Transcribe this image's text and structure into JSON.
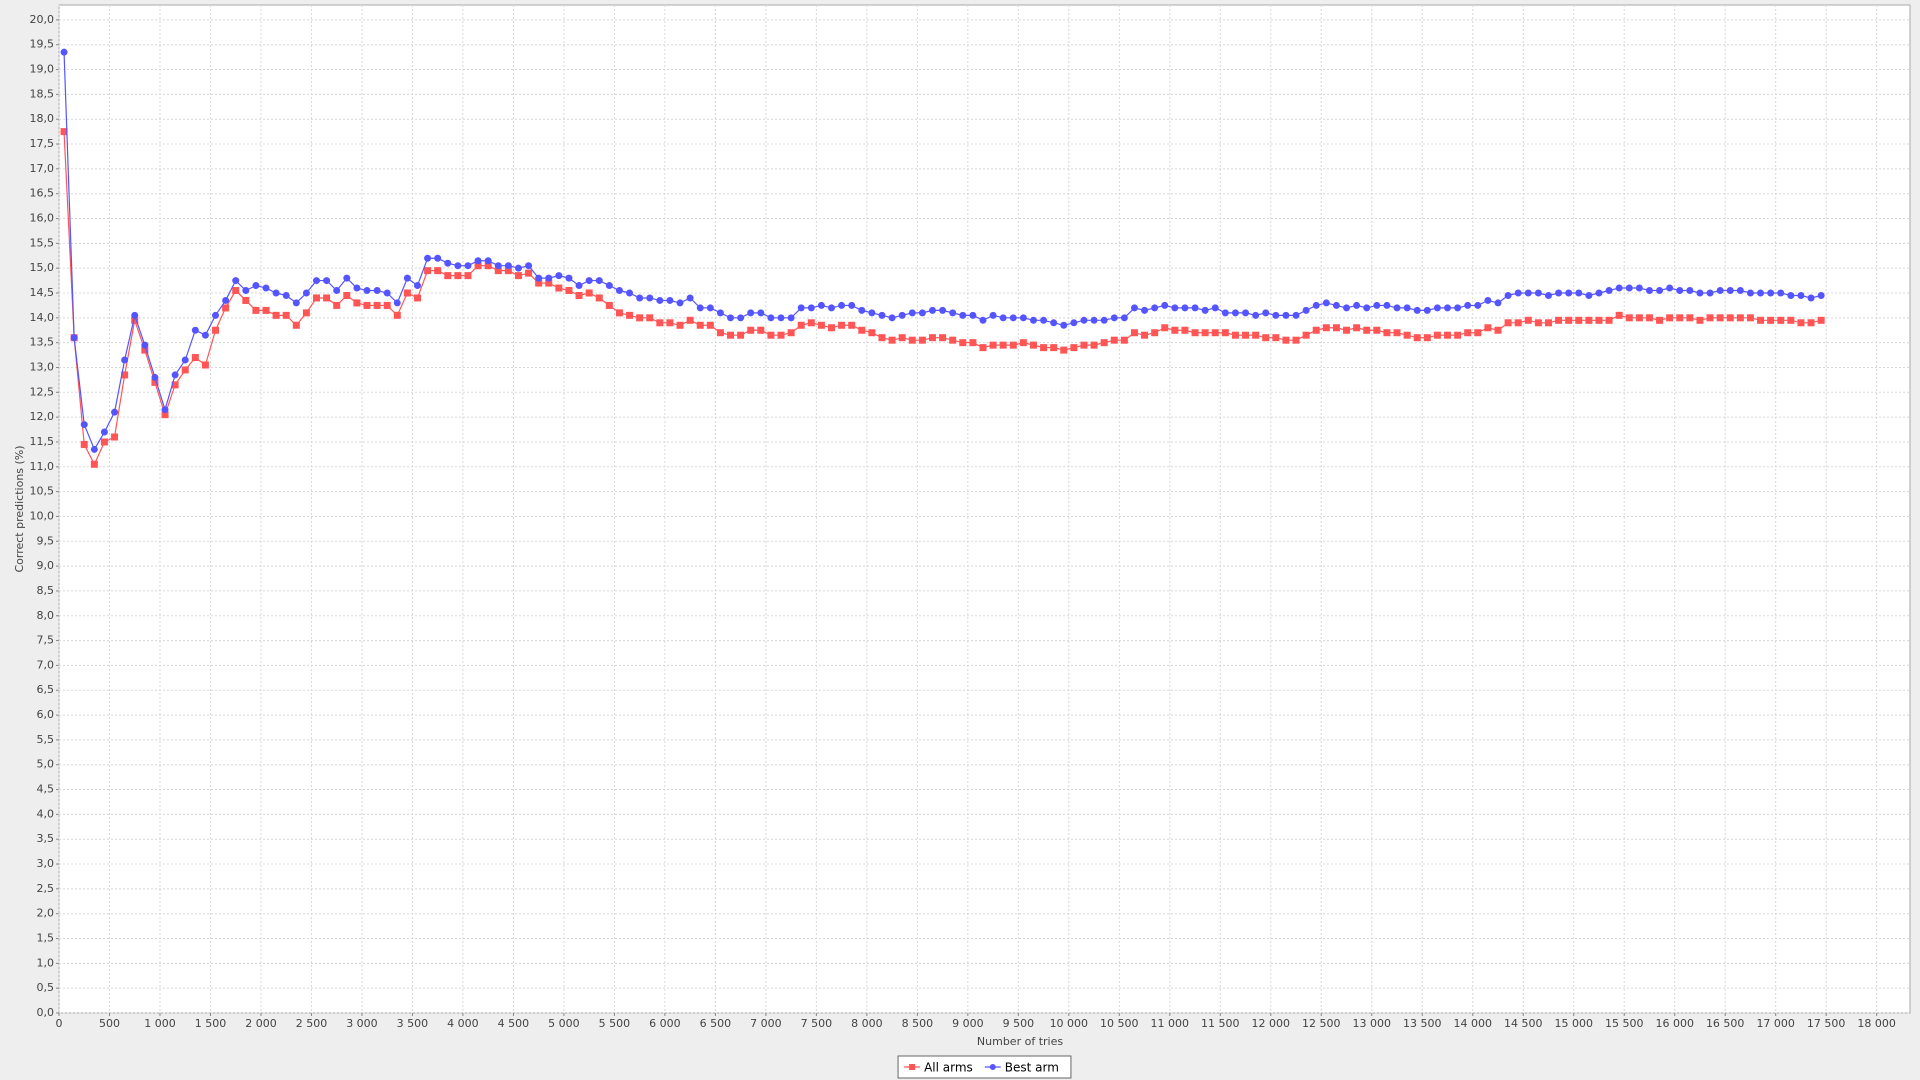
{
  "chart_data": {
    "type": "line",
    "xlabel": "Number of tries",
    "ylabel": "Correct predictions (%)",
    "xlim": [
      0,
      18330
    ],
    "ylim": [
      0,
      20.3
    ],
    "grid": true,
    "legend": "bottom",
    "xticks": [
      0,
      500,
      {
        "value": 1000,
        "label": "1 000"
      },
      {
        "value": 1500,
        "label": "1 500"
      },
      {
        "value": 2000,
        "label": "2 000"
      },
      {
        "value": 2500,
        "label": "2 500"
      },
      {
        "value": 3000,
        "label": "3 000"
      },
      {
        "value": 3500,
        "label": "3 500"
      },
      {
        "value": 4000,
        "label": "4 000"
      },
      {
        "value": 4500,
        "label": "4 500"
      },
      {
        "value": 5000,
        "label": "5 000"
      },
      {
        "value": 5500,
        "label": "5 500"
      },
      {
        "value": 6000,
        "label": "6 000"
      },
      {
        "value": 6500,
        "label": "6 500"
      },
      {
        "value": 7000,
        "label": "7 000"
      },
      {
        "value": 7500,
        "label": "7 500"
      },
      {
        "value": 8000,
        "label": "8 000"
      },
      {
        "value": 8500,
        "label": "8 500"
      },
      {
        "value": 9000,
        "label": "9 000"
      },
      {
        "value": 9500,
        "label": "9 500"
      },
      {
        "value": 10000,
        "label": "10 000"
      },
      {
        "value": 10500,
        "label": "10 500"
      },
      {
        "value": 11000,
        "label": "11 000"
      },
      {
        "value": 11500,
        "label": "11 500"
      },
      {
        "value": 12000,
        "label": "12 000"
      },
      {
        "value": 12500,
        "label": "12 500"
      },
      {
        "value": 13000,
        "label": "13 000"
      },
      {
        "value": 13500,
        "label": "13 500"
      },
      {
        "value": 14000,
        "label": "14 000"
      },
      {
        "value": 14500,
        "label": "14 500"
      },
      {
        "value": 15000,
        "label": "15 000"
      },
      {
        "value": 15500,
        "label": "15 500"
      },
      {
        "value": 16000,
        "label": "16 000"
      },
      {
        "value": 16500,
        "label": "16 500"
      },
      {
        "value": 17000,
        "label": "17 000"
      },
      {
        "value": 17500,
        "label": "17 500"
      },
      {
        "value": 18000,
        "label": "18 000"
      }
    ],
    "yticks": [
      {
        "value": 0,
        "label": "0,0"
      },
      {
        "value": 0.5,
        "label": "0,5"
      },
      {
        "value": 1,
        "label": "1,0"
      },
      {
        "value": 1.5,
        "label": "1,5"
      },
      {
        "value": 2,
        "label": "2,0"
      },
      {
        "value": 2.5,
        "label": "2,5"
      },
      {
        "value": 3,
        "label": "3,0"
      },
      {
        "value": 3.5,
        "label": "3,5"
      },
      {
        "value": 4,
        "label": "4,0"
      },
      {
        "value": 4.5,
        "label": "4,5"
      },
      {
        "value": 5,
        "label": "5,0"
      },
      {
        "value": 5.5,
        "label": "5,5"
      },
      {
        "value": 6,
        "label": "6,0"
      },
      {
        "value": 6.5,
        "label": "6,5"
      },
      {
        "value": 7,
        "label": "7,0"
      },
      {
        "value": 7.5,
        "label": "7,5"
      },
      {
        "value": 8,
        "label": "8,0"
      },
      {
        "value": 8.5,
        "label": "8,5"
      },
      {
        "value": 9,
        "label": "9,0"
      },
      {
        "value": 9.5,
        "label": "9,5"
      },
      {
        "value": 10,
        "label": "10,0"
      },
      {
        "value": 10.5,
        "label": "10,5"
      },
      {
        "value": 11,
        "label": "11,0"
      },
      {
        "value": 11.5,
        "label": "11,5"
      },
      {
        "value": 12,
        "label": "12,0"
      },
      {
        "value": 12.5,
        "label": "12,5"
      },
      {
        "value": 13,
        "label": "13,0"
      },
      {
        "value": 13.5,
        "label": "13,5"
      },
      {
        "value": 14,
        "label": "14,0"
      },
      {
        "value": 14.5,
        "label": "14,5"
      },
      {
        "value": 15,
        "label": "15,0"
      },
      {
        "value": 15.5,
        "label": "15,5"
      },
      {
        "value": 16,
        "label": "16,0"
      },
      {
        "value": 16.5,
        "label": "16,5"
      },
      {
        "value": 17,
        "label": "17,0"
      },
      {
        "value": 17.5,
        "label": "17,5"
      },
      {
        "value": 18,
        "label": "18,0"
      },
      {
        "value": 18.5,
        "label": "18,5"
      },
      {
        "value": 19,
        "label": "19,0"
      },
      {
        "value": 19.5,
        "label": "19,5"
      },
      {
        "value": 20,
        "label": "20,0"
      }
    ],
    "x": [
      50,
      150,
      250,
      350,
      450,
      550,
      650,
      750,
      850,
      950,
      1050,
      1150,
      1250,
      1350,
      1450,
      1550,
      1650,
      1750,
      1850,
      1950,
      2050,
      2150,
      2250,
      2350,
      2450,
      2550,
      2650,
      2750,
      2850,
      2950,
      3050,
      3150,
      3250,
      3350,
      3450,
      3550,
      3650,
      3750,
      3850,
      3950,
      4050,
      4150,
      4250,
      4350,
      4450,
      4550,
      4650,
      4750,
      4850,
      4950,
      5050,
      5150,
      5250,
      5350,
      5450,
      5550,
      5650,
      5750,
      5850,
      5950,
      6050,
      6150,
      6250,
      6350,
      6450,
      6550,
      6650,
      6750,
      6850,
      6950,
      7050,
      7150,
      7250,
      7350,
      7450,
      7550,
      7650,
      7750,
      7850,
      7950,
      8050,
      8150,
      8250,
      8350,
      8450,
      8550,
      8650,
      8750,
      8850,
      8950,
      9050,
      9150,
      9250,
      9350,
      9450,
      9550,
      9650,
      9750,
      9850,
      9950,
      10050,
      10150,
      10250,
      10350,
      10450,
      10550,
      10650,
      10750,
      10850,
      10950,
      11050,
      11150,
      11250,
      11350,
      11450,
      11550,
      11650,
      11750,
      11850,
      11950,
      12050,
      12150,
      12250,
      12350,
      12450,
      12550,
      12650,
      12750,
      12850,
      12950,
      13050,
      13150,
      13250,
      13350,
      13450,
      13550,
      13650,
      13750,
      13850,
      13950,
      14050,
      14150,
      14250,
      14350,
      14450,
      14550,
      14650,
      14750,
      14850,
      14950,
      15050,
      15150,
      15250,
      15350,
      15450,
      15550,
      15650,
      15750,
      15850,
      15950,
      16050,
      16150,
      16250,
      16350,
      16450,
      16550,
      16650,
      16750,
      16850,
      16950,
      17050,
      17150,
      17250,
      17350,
      17450
    ],
    "series": [
      {
        "name": "All arms",
        "color": "#ff5555",
        "marker": "square",
        "values": [
          17.75,
          13.6,
          11.45,
          11.05,
          11.5,
          11.6,
          12.85,
          13.95,
          13.35,
          12.7,
          12.05,
          12.65,
          12.95,
          13.2,
          13.05,
          13.75,
          14.2,
          14.55,
          14.35,
          14.15,
          14.15,
          14.05,
          14.05,
          13.85,
          14.1,
          14.4,
          14.4,
          14.25,
          14.45,
          14.3,
          14.25,
          14.25,
          14.25,
          14.05,
          14.5,
          14.4,
          14.95,
          14.95,
          14.85,
          14.85,
          14.85,
          15.05,
          15.05,
          14.95,
          14.95,
          14.85,
          14.9,
          14.7,
          14.7,
          14.6,
          14.55,
          14.45,
          14.5,
          14.4,
          14.25,
          14.1,
          14.05,
          14.0,
          14.0,
          13.9,
          13.9,
          13.85,
          13.95,
          13.85,
          13.85,
          13.7,
          13.65,
          13.65,
          13.75,
          13.75,
          13.65,
          13.65,
          13.7,
          13.85,
          13.9,
          13.85,
          13.8,
          13.85,
          13.85,
          13.75,
          13.7,
          13.6,
          13.55,
          13.6,
          13.55,
          13.55,
          13.6,
          13.6,
          13.55,
          13.5,
          13.5,
          13.4,
          13.45,
          13.45,
          13.45,
          13.5,
          13.45,
          13.4,
          13.4,
          13.35,
          13.4,
          13.45,
          13.45,
          13.5,
          13.55,
          13.55,
          13.7,
          13.65,
          13.7,
          13.8,
          13.75,
          13.75,
          13.7,
          13.7,
          13.7,
          13.7,
          13.65,
          13.65,
          13.65,
          13.6,
          13.6,
          13.55,
          13.55,
          13.65,
          13.75,
          13.8,
          13.8,
          13.75,
          13.8,
          13.75,
          13.75,
          13.7,
          13.7,
          13.65,
          13.6,
          13.6,
          13.65,
          13.65,
          13.65,
          13.7,
          13.7,
          13.8,
          13.75,
          13.9,
          13.9,
          13.95,
          13.9,
          13.9,
          13.95,
          13.95,
          13.95,
          13.95,
          13.95,
          13.95,
          14.05,
          14.0,
          14.0,
          14.0,
          13.95,
          14.0,
          14.0,
          14.0,
          13.95,
          14.0,
          14.0,
          14.0,
          14.0,
          14.0,
          13.95,
          13.95,
          13.95,
          13.95,
          13.9,
          13.9,
          13.95
        ]
      },
      {
        "name": "Best arm",
        "color": "#5555ff",
        "marker": "circle",
        "values": [
          19.35,
          13.6,
          11.85,
          11.35,
          11.7,
          12.1,
          13.15,
          14.05,
          13.45,
          12.8,
          12.15,
          12.85,
          13.15,
          13.75,
          13.65,
          14.05,
          14.35,
          14.75,
          14.55,
          14.65,
          14.6,
          14.5,
          14.45,
          14.3,
          14.5,
          14.75,
          14.75,
          14.55,
          14.8,
          14.6,
          14.55,
          14.55,
          14.5,
          14.3,
          14.8,
          14.65,
          15.2,
          15.2,
          15.1,
          15.05,
          15.05,
          15.15,
          15.15,
          15.05,
          15.05,
          15.0,
          15.05,
          14.8,
          14.8,
          14.85,
          14.8,
          14.65,
          14.75,
          14.75,
          14.65,
          14.55,
          14.5,
          14.4,
          14.4,
          14.35,
          14.35,
          14.3,
          14.4,
          14.2,
          14.2,
          14.1,
          14.0,
          14.0,
          14.1,
          14.1,
          14.0,
          14.0,
          14.0,
          14.2,
          14.2,
          14.25,
          14.2,
          14.25,
          14.25,
          14.15,
          14.1,
          14.05,
          14.0,
          14.05,
          14.1,
          14.1,
          14.15,
          14.15,
          14.1,
          14.05,
          14.05,
          13.95,
          14.05,
          14.0,
          14.0,
          14.0,
          13.95,
          13.95,
          13.9,
          13.85,
          13.9,
          13.95,
          13.95,
          13.95,
          14.0,
          14.0,
          14.2,
          14.15,
          14.2,
          14.25,
          14.2,
          14.2,
          14.2,
          14.15,
          14.2,
          14.1,
          14.1,
          14.1,
          14.05,
          14.1,
          14.05,
          14.05,
          14.05,
          14.15,
          14.25,
          14.3,
          14.25,
          14.2,
          14.25,
          14.2,
          14.25,
          14.25,
          14.2,
          14.2,
          14.15,
          14.15,
          14.2,
          14.2,
          14.2,
          14.25,
          14.25,
          14.35,
          14.3,
          14.45,
          14.5,
          14.5,
          14.5,
          14.45,
          14.5,
          14.5,
          14.5,
          14.45,
          14.5,
          14.55,
          14.6,
          14.6,
          14.6,
          14.55,
          14.55,
          14.6,
          14.55,
          14.55,
          14.5,
          14.5,
          14.55,
          14.55,
          14.55,
          14.5,
          14.5,
          14.5,
          14.5,
          14.45,
          14.45,
          14.4,
          14.45
        ]
      }
    ]
  }
}
